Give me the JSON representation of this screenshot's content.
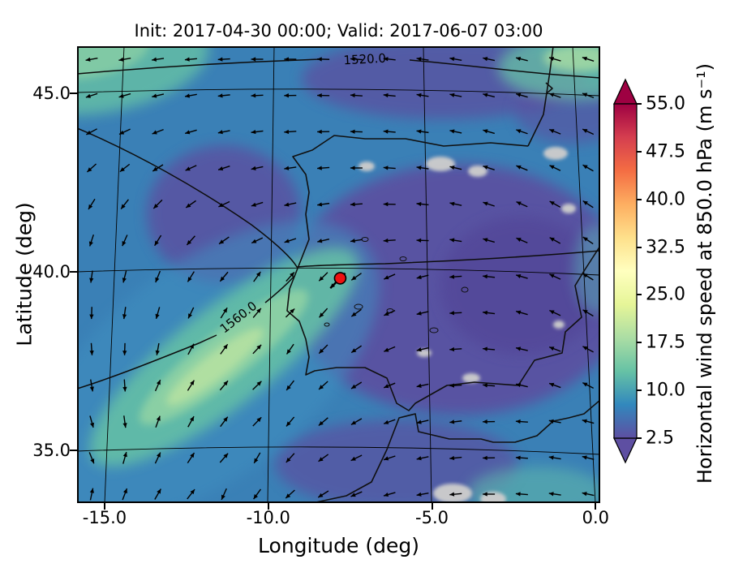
{
  "figure": {
    "title": "Init: 2017-04-30 00:00; Valid: 2017-06-07 03:00",
    "xlabel": "Longitude (deg)",
    "ylabel": "Latitude (deg)"
  },
  "axes": {
    "xlim": [
      -16.2,
      0.5
    ],
    "ylim": [
      33.4,
      46.2
    ],
    "x_ticks": [
      "-15.0",
      "-10.0",
      "-5.0",
      "0.0"
    ],
    "x_tick_values": [
      -15,
      -10,
      -5,
      0
    ],
    "y_ticks": [
      "45.0",
      "40.0",
      "35.0"
    ],
    "y_tick_values": [
      45,
      40,
      35
    ]
  },
  "colorbar": {
    "label": "Horizontal wind speed at 850.0 hPa (m s⁻¹)",
    "tick_labels": [
      "55.0",
      "47.5",
      "40.0",
      "32.5",
      "25.0",
      "17.5",
      "10.0",
      "2.5"
    ],
    "tick_values": [
      55,
      47.5,
      40,
      32.5,
      25,
      17.5,
      10,
      2.5
    ],
    "vmin": 2.5,
    "vmax": 55.0,
    "gradient_bottom_to_top": [
      "#5e4fa2",
      "#3288bd",
      "#66c2a5",
      "#abdda4",
      "#e6f598",
      "#ffffbf",
      "#fee08b",
      "#fdae61",
      "#f46d43",
      "#d53e4f",
      "#9e0142"
    ],
    "under_arrow_color": "#5e4fa2",
    "over_arrow_color": "#9e0142"
  },
  "contours": {
    "labels": [
      "1520.0",
      "1560.0"
    ]
  },
  "marker": {
    "lon": -7.8,
    "lat": 39.7,
    "color": "#ee1111"
  },
  "chart_data": {
    "type": "heatmap",
    "title": "Init: 2017-04-30 00:00; Valid: 2017-06-07 03:00",
    "xlabel": "Longitude (deg)",
    "ylabel": "Latitude (deg)",
    "xlim": [
      -16.2,
      0.5
    ],
    "ylim": [
      33.4,
      46.2
    ],
    "x_ticks": [
      -15.0,
      -10.0,
      -5.0,
      0.0
    ],
    "y_ticks": [
      35.0,
      40.0,
      45.0
    ],
    "field": "Horizontal wind speed at 850.0 hPa (m s⁻¹)",
    "colorbar": {
      "vmin": 2.5,
      "vmax": 55.0,
      "ticks": [
        2.5,
        10.0,
        17.5,
        25.0,
        32.5,
        40.0,
        47.5,
        55.0
      ],
      "colormap": "Spectral_r"
    },
    "speed_sample_lons": [
      -16,
      -13,
      -10,
      -7,
      -4,
      -1,
      0.5
    ],
    "speed_sample_lats": [
      46,
      44,
      42,
      40,
      38,
      36,
      34
    ],
    "speed_values_ms": [
      [
        14,
        12,
        8,
        5,
        5,
        12,
        15
      ],
      [
        12,
        8,
        5,
        4,
        4,
        6,
        10
      ],
      [
        8,
        5,
        4,
        5,
        4,
        5,
        7
      ],
      [
        7,
        8,
        10,
        4,
        4,
        4,
        5
      ],
      [
        8,
        12,
        15,
        6,
        4,
        4,
        6
      ],
      [
        10,
        14,
        12,
        7,
        5,
        5,
        8
      ],
      [
        12,
        15,
        8,
        6,
        4,
        6,
        9
      ]
    ],
    "quiver": {
      "lon_start": -16.0,
      "lon_step": 1.093,
      "lat_start": 45.9,
      "lat_step": -1.025,
      "angle_convention": "degrees, 0 = east, counterclockwise",
      "angles_deg": [
        [
          190,
          190,
          188,
          185,
          183,
          180,
          180,
          178,
          176,
          174,
          172,
          170,
          168,
          166,
          164,
          162
        ],
        [
          198,
          196,
          193,
          190,
          186,
          183,
          181,
          179,
          176,
          174,
          171,
          169,
          166,
          164,
          161,
          159
        ],
        [
          208,
          205,
          201,
          196,
          191,
          187,
          184,
          181,
          178,
          175,
          172,
          168,
          164,
          161,
          158,
          155
        ],
        [
          222,
          218,
          212,
          205,
          198,
          192,
          188,
          184,
          180,
          176,
          172,
          167,
          162,
          158,
          154,
          150
        ],
        [
          238,
          232,
          225,
          215,
          205,
          197,
          192,
          188,
          184,
          179,
          174,
          168,
          162,
          156,
          151,
          147
        ],
        [
          252,
          246,
          238,
          228,
          215,
          205,
          198,
          193,
          189,
          184,
          178,
          171,
          164,
          157,
          151,
          146
        ],
        [
          262,
          256,
          248,
          238,
          230,
          55,
          48,
          225,
          215,
          204,
          194,
          184,
          174,
          164,
          155,
          148
        ],
        [
          268,
          262,
          254,
          244,
          58,
          50,
          44,
          228,
          216,
          204,
          193,
          183,
          173,
          164,
          155,
          149
        ],
        [
          274,
          268,
          260,
          62,
          54,
          47,
          235,
          225,
          214,
          203,
          193,
          184,
          175,
          167,
          159,
          152
        ],
        [
          280,
          274,
          66,
          58,
          50,
          44,
          232,
          222,
          212,
          202,
          192,
          183,
          175,
          167,
          160,
          153
        ],
        [
          286,
          278,
          70,
          61,
          53,
          46,
          230,
          220,
          210,
          200,
          193,
          187,
          181,
          176,
          170,
          165
        ],
        [
          292,
          74,
          65,
          57,
          49,
          240,
          228,
          216,
          206,
          198,
          192,
          186,
          181,
          176,
          171,
          166
        ],
        [
          78,
          69,
          60,
          52,
          246,
          234,
          222,
          212,
          203,
          196,
          190,
          185,
          180,
          176,
          172,
          168
        ]
      ]
    },
    "geopotential_contour_labels": [
      1520.0,
      1560.0
    ],
    "station_marker": {
      "lon": -7.8,
      "lat": 39.7
    }
  }
}
